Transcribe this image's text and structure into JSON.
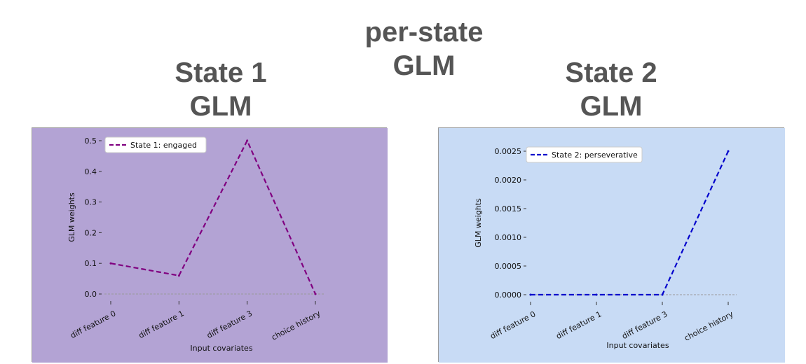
{
  "center_heading": {
    "line1": "per-state",
    "line2": "GLM"
  },
  "panels": [
    {
      "heading": {
        "line1": "State 1",
        "line2": "GLM"
      }
    },
    {
      "heading": {
        "line1": "State 2",
        "line2": "GLM"
      }
    }
  ],
  "colors": {
    "state1_background": "#b3a3d4",
    "state2_background": "#c8dbf5",
    "state1_line": "#800080",
    "state2_line": "#0000cc",
    "zero_line": "#9a9a9a"
  },
  "chart_data": [
    {
      "type": "line",
      "categories": [
        "diff feature 0",
        "diff feature 1",
        "diff feature 3",
        "choice history"
      ],
      "series": [
        {
          "name": "State 1: engaged",
          "values": [
            0.1,
            0.06,
            0.5,
            0.0
          ]
        }
      ],
      "xlabel": "Input covariates",
      "ylabel": "GLM weights",
      "ylim": [
        0.0,
        0.5
      ],
      "yticks": [
        "0.0",
        "0.1",
        "0.2",
        "0.3",
        "0.4",
        "0.5"
      ],
      "line_style": "dashed",
      "grid": false,
      "legend": "top-left"
    },
    {
      "type": "line",
      "categories": [
        "diff feature 0",
        "diff feature 1",
        "diff feature 3",
        "choice history"
      ],
      "series": [
        {
          "name": "State 2: perseverative",
          "values": [
            0.0,
            0.0,
            0.0,
            0.0025
          ]
        }
      ],
      "xlabel": "Input covariates",
      "ylabel": "GLM weights",
      "ylim": [
        0.0,
        0.0025
      ],
      "yticks": [
        "0.0000",
        "0.0005",
        "0.0010",
        "0.0015",
        "0.0020",
        "0.0025"
      ],
      "line_style": "dashed",
      "grid": false,
      "legend": "top-left"
    }
  ]
}
